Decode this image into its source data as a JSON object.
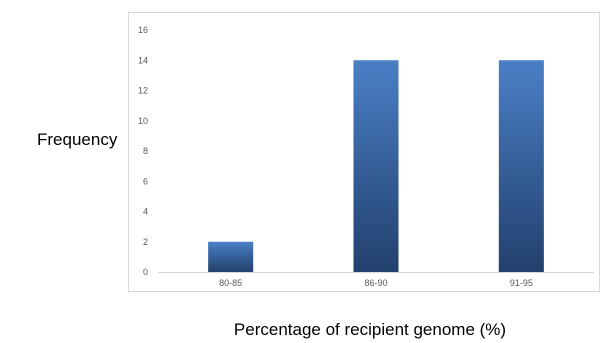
{
  "chart_data": {
    "type": "bar",
    "categories": [
      "80-85",
      "86-90",
      "91-95"
    ],
    "values": [
      2,
      14,
      14
    ],
    "xlabel": "Percentage of recipient genome (%)",
    "ylabel": "Frequency",
    "ylim": [
      0,
      16
    ],
    "yticks": [
      0,
      2,
      4,
      6,
      8,
      10,
      12,
      14,
      16
    ],
    "grid": false,
    "bar_color_top": "#4a7fc6",
    "bar_color_bottom": "#22406d",
    "frame_color": "#d9d9d9",
    "axis_color": "#d9d9d9",
    "tick_label_color": "#595959"
  }
}
